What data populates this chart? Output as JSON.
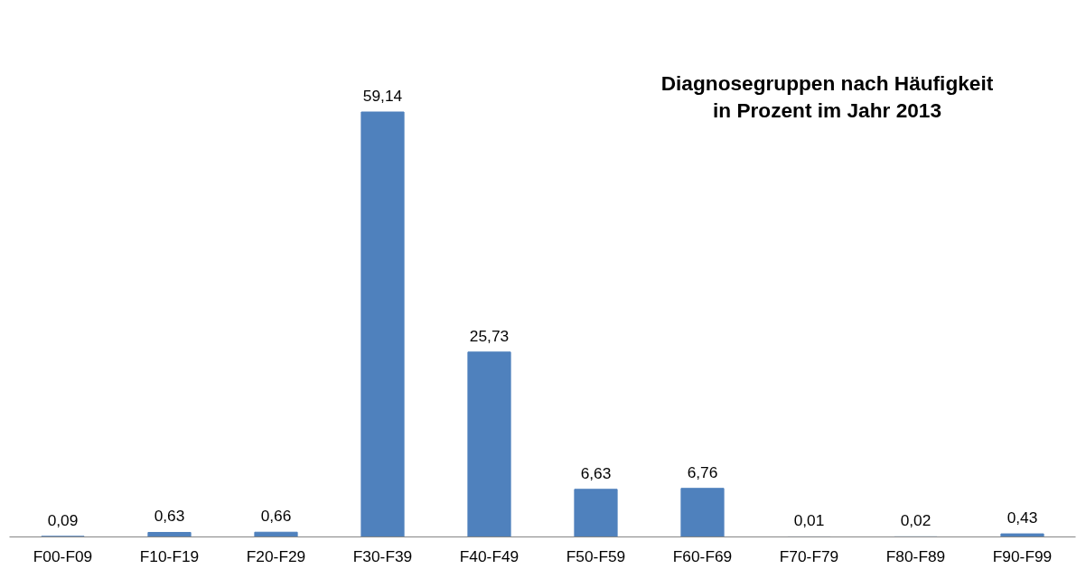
{
  "chart_data": {
    "type": "bar",
    "title": "Diagnosegruppen nach Häufigkeit\nin Prozent im Jahr 2013",
    "categories": [
      "F00-F09",
      "F10-F19",
      "F20-F29",
      "F30-F39",
      "F40-F49",
      "F50-F59",
      "F60-F69",
      "F70-F79",
      "F80-F89",
      "F90-F99"
    ],
    "values": [
      0.09,
      0.63,
      0.66,
      59.14,
      25.73,
      6.63,
      6.76,
      0.01,
      0.02,
      0.43
    ],
    "value_labels": [
      "0,09",
      "0,63",
      "0,66",
      "59,14",
      "25,73",
      "6,63",
      "6,76",
      "0,01",
      "0,02",
      "0,43"
    ],
    "color": "#4f81bd"
  }
}
